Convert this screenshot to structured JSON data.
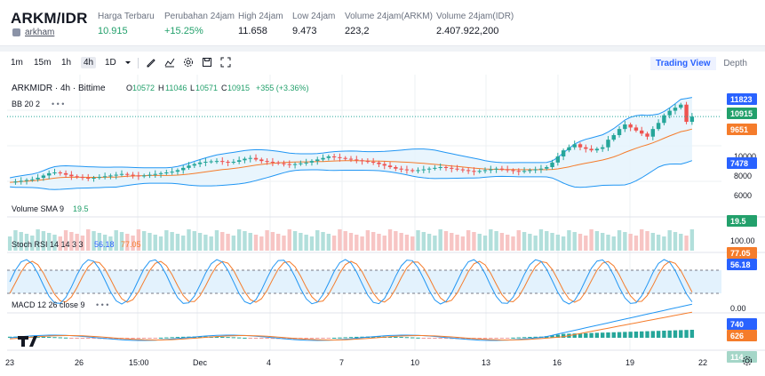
{
  "header": {
    "pair": "ARKM/IDR",
    "sub": "arkham",
    "stats": [
      {
        "label": "Harga Terbaru",
        "value": "10.915",
        "color": "#22a06b"
      },
      {
        "label": "Perubahan 24jam",
        "value": "+15.25%",
        "color": "#22a06b"
      },
      {
        "label": "High 24jam",
        "value": "11.658",
        "color": "#131722"
      },
      {
        "label": "Low 24jam",
        "value": "9.473",
        "color": "#131722"
      },
      {
        "label": "Volume 24jam(ARKM)",
        "value": "223,2",
        "color": "#131722"
      },
      {
        "label": "Volume 24jam(IDR)",
        "value": "2.407.922,200",
        "color": "#131722"
      }
    ]
  },
  "toolbar": {
    "intervals": [
      "1m",
      "15m",
      "1h",
      "4h",
      "1D"
    ],
    "active_interval": "4h",
    "icons": [
      "dropdown-icon",
      "draw-icon",
      "indicator-icon",
      "settings-icon",
      "save-icon",
      "fullscreen-icon"
    ],
    "tabs": [
      "Trading View",
      "Depth"
    ],
    "active_tab": "Trading View"
  },
  "legend": {
    "symbol": "ARKMIDR · 4h · Bittime",
    "o_label": "O",
    "o": "10572",
    "h_label": "H",
    "h": "11046",
    "l_label": "L",
    "l": "10571",
    "c_label": "C",
    "c": "10915",
    "change": "+355 (+3.36%)",
    "bb": "BB 20 2",
    "volume": "Volume SMA 9",
    "volume_val": "19.5",
    "stoch": "Stoch RSI 14 14 3 3",
    "stoch_k": "56.18",
    "stoch_d": "77.05",
    "macd": "MACD 12 26 close 9"
  },
  "price_axis": {
    "ticks": [
      "10000",
      "8000",
      "6000"
    ],
    "badges": [
      {
        "text": "11823",
        "color": "#2962ff"
      },
      {
        "text": "10915",
        "color": "#22a06b"
      },
      {
        "text": "9651",
        "color": "#f57c2b"
      },
      {
        "text": "7478",
        "color": "#2962ff"
      }
    ]
  },
  "volume_axis": {
    "badge": "19.5",
    "color": "#22a06b"
  },
  "stoch_axis": {
    "ticks": [
      "100.00",
      "0.00"
    ],
    "badges": [
      {
        "text": "77.05",
        "color": "#f57c2b"
      },
      {
        "text": "56.18",
        "color": "#2962ff"
      }
    ]
  },
  "macd_axis": {
    "badges": [
      {
        "text": "740",
        "color": "#2962ff"
      },
      {
        "text": "626",
        "color": "#f57c2b"
      },
      {
        "text": "114",
        "color": "#a5d6c8"
      }
    ]
  },
  "time_axis": [
    "23",
    "26",
    "15:00",
    "Dec",
    "4",
    "7",
    "10",
    "13",
    "16",
    "19",
    "22"
  ],
  "colors": {
    "up": "#26a69a",
    "down": "#ef5350",
    "bb": "#2196f3",
    "sma": "#f57c2b",
    "grid": "#eef0f3"
  },
  "chart_data": {
    "type": "candlestick",
    "price_series": [
      6600,
      6650,
      6700,
      6750,
      6800,
      6900,
      7050,
      7200,
      7250,
      7200,
      7100,
      7000,
      6950,
      6900,
      6880,
      6900,
      6950,
      7000,
      7050,
      7100,
      7150,
      7100,
      7050,
      7000,
      7050,
      7100,
      7150,
      7200,
      7250,
      7300,
      7400,
      7550,
      7700,
      7800,
      7900,
      7950,
      7980,
      8000,
      7950,
      7900,
      7950,
      8050,
      8150,
      8200,
      8100,
      8000,
      7950,
      7900,
      7850,
      7800,
      7750,
      7800,
      7850,
      7900,
      8000,
      8100,
      8200,
      8300,
      8250,
      8200,
      8150,
      8100,
      8050,
      8000,
      7950,
      7900,
      7800,
      7700,
      7600,
      7500,
      7450,
      7400,
      7350,
      7400,
      7450,
      7500,
      7550,
      7600,
      7550,
      7500,
      7450,
      7400,
      7350,
      7300,
      7350,
      7400,
      7450,
      7500,
      7450,
      7400,
      7350,
      7300,
      7350,
      7400,
      7450,
      7500,
      7600,
      7900,
      8300,
      8700,
      8900,
      9100,
      8900,
      8800,
      8700,
      8800,
      8900,
      9400,
      9700,
      10100,
      10400,
      10200,
      10000,
      9800,
      9600,
      10100,
      10500,
      11000,
      11300,
      11500,
      11700,
      10572,
      10915
    ]
  }
}
